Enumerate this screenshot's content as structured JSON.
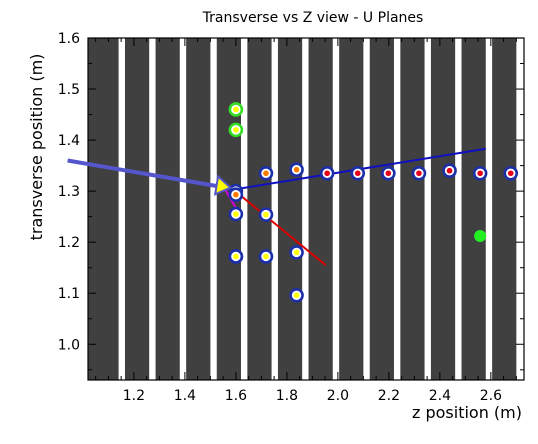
{
  "chart_data": {
    "type": "scatter",
    "title": "Transverse vs Z view - U Planes",
    "xlabel": "z position (m)",
    "ylabel": "transverse position (m)",
    "xlim": [
      1.02,
      2.73
    ],
    "ylim": [
      0.93,
      1.6
    ],
    "x_ticks": [
      1.2,
      1.4,
      1.6,
      1.8,
      2.0,
      2.2,
      2.4,
      2.6
    ],
    "x_tick_labels": [
      "1.2",
      "1.4",
      "1.6",
      "1.8",
      "2.0",
      "2.2",
      "2.4",
      "2.6"
    ],
    "y_ticks": [
      1.0,
      1.1,
      1.2,
      1.3,
      1.4,
      1.5,
      1.6
    ],
    "y_tick_labels": [
      "1.0",
      "1.1",
      "1.2",
      "1.3",
      "1.4",
      "1.5",
      "1.6"
    ],
    "grid": false,
    "background_stripes": {
      "colors": [
        "#404040",
        "#ffffff"
      ],
      "x_start": [
        1.02,
        1.165,
        1.285,
        1.405,
        1.525,
        1.645,
        1.765,
        1.885,
        2.005,
        2.125,
        2.245,
        2.365,
        2.485,
        2.605
      ],
      "x_end": [
        1.14,
        1.26,
        1.38,
        1.5,
        1.62,
        1.74,
        1.86,
        1.98,
        2.1,
        2.22,
        2.34,
        2.46,
        2.58,
        2.7
      ]
    },
    "series": [
      {
        "marker": "ring-blue-yellow-center",
        "colors": {
          "ring": "#1d2fa8",
          "center": "#ffff00"
        },
        "x": [
          1.6,
          1.6,
          1.6,
          1.718,
          1.718,
          1.838,
          1.838
        ],
        "y": [
          1.255,
          1.172,
          1.172,
          1.254,
          1.172,
          1.18,
          1.096
        ]
      },
      {
        "marker": "ring-blue-orange-center",
        "colors": {
          "ring": "#1d2fa8",
          "center": "#ff7a00"
        },
        "x": [
          1.6,
          1.6,
          1.718,
          1.838
        ],
        "y": [
          1.3,
          1.293,
          1.335,
          1.342
        ]
      },
      {
        "marker": "ring-blue-red-center",
        "colors": {
          "ring": "#1d2fa8",
          "center": "#e8001a"
        },
        "x": [
          1.958,
          2.078,
          2.198,
          2.318,
          2.438,
          2.558,
          2.678
        ],
        "y": [
          1.335,
          1.335,
          1.335,
          1.335,
          1.34,
          1.335,
          1.335
        ]
      },
      {
        "marker": "ring-green-yellow-center",
        "colors": {
          "ring": "#33dd22",
          "center": "#ffff00"
        },
        "x": [
          1.6,
          1.6
        ],
        "y": [
          1.46,
          1.42
        ]
      },
      {
        "marker": "filled-green",
        "colors": {
          "fill": "#22ee22"
        },
        "x": [
          2.558
        ],
        "y": [
          1.212
        ]
      }
    ],
    "lines": [
      {
        "color": "#1010c0",
        "x": [
          1.59,
          2.58
        ],
        "y": [
          1.303,
          1.383
        ]
      },
      {
        "color": "#dd0000",
        "x": [
          1.59,
          1.952
        ],
        "y": [
          1.303,
          1.155
        ]
      },
      {
        "color": "#dd00dd",
        "x": [
          1.55,
          1.62
        ],
        "y": [
          1.31,
          1.25
        ]
      },
      {
        "color": "#5555cc",
        "x": [
          0.94,
          1.54
        ],
        "y": [
          1.36,
          1.31
        ],
        "arrowhead": "yellow-triangle",
        "extends_left_of_axes": true
      }
    ]
  }
}
